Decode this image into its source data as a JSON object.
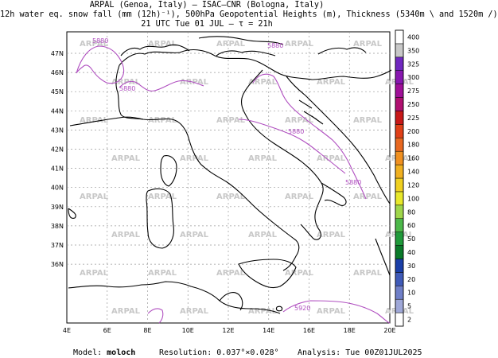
{
  "title": {
    "line1": "ARPAL (Genoa, Italy)  –  ISAC–CNR (Bologna, Italy)",
    "line2": "12h water eq. snow fall (mm (12h)⁻¹), 500hPa Geopotential Heights (m), Thickness (5340m \\ and 1520m /)",
    "line3": "21 UTC Tue 01 JUL  –  τ = 21h"
  },
  "footer": {
    "model_label": "Model:",
    "model_value": "moloch",
    "resolution_label": "Resolution:",
    "resolution_value": "0.037°×0.028°",
    "analysis_label": "Analysis:",
    "analysis_value": "Tue 00Z01JUL2025"
  },
  "map": {
    "lon_labels": [
      "4E",
      "6E",
      "8E",
      "10E",
      "12E",
      "14E",
      "16E",
      "18E",
      "20E"
    ],
    "lat_labels": [
      "47N",
      "46N",
      "45N",
      "44N",
      "43N",
      "42N",
      "41N",
      "40N",
      "39N",
      "38N",
      "37N",
      "36N"
    ],
    "watermark": "ARPAL",
    "contour_labels": [
      "5880",
      "5880",
      "5880",
      "5880",
      "5880",
      "5920"
    ],
    "colors": {
      "coast": "#000000",
      "contour": "#b04fc0",
      "grid": "#999999",
      "watermark": "#c8c8c8"
    }
  },
  "colorbar": {
    "levels": [
      "2",
      "5",
      "10",
      "20",
      "30",
      "40",
      "50",
      "60",
      "80",
      "100",
      "120",
      "140",
      "160",
      "180",
      "200",
      "225",
      "250",
      "275",
      "300",
      "325",
      "350",
      "400"
    ],
    "colors": [
      "#ffffff",
      "#9fa8d8",
      "#6f7fc8",
      "#3f5ab8",
      "#1a3fa8",
      "#0a7a2a",
      "#1f9a3a",
      "#4cb84a",
      "#9fd64a",
      "#e8e82a",
      "#f0d020",
      "#f0b020",
      "#f09020",
      "#e86820",
      "#e04018",
      "#c81818",
      "#b01070",
      "#a01098",
      "#8818b0",
      "#7028c0",
      "#c8c8c8"
    ]
  }
}
